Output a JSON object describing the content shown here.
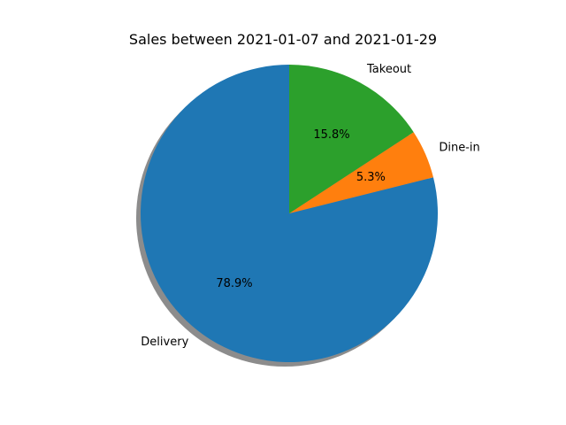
{
  "chart_data": {
    "type": "pie",
    "title": "Sales between 2021-01-07 and 2021-01-29",
    "slices": [
      {
        "label": "Delivery",
        "value": 78.9,
        "pct_label": "78.9%",
        "color": "#1f77b4"
      },
      {
        "label": "Dine-in",
        "value": 5.3,
        "pct_label": "5.3%",
        "color": "#ff7f0e"
      },
      {
        "label": "Takeout",
        "value": 15.8,
        "pct_label": "15.8%",
        "color": "#2ca02c"
      }
    ],
    "start_angle_deg": 90,
    "shadow": true,
    "legend": false
  }
}
